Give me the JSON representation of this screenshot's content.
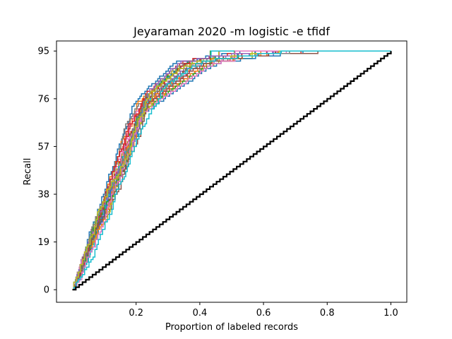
{
  "chart_data": {
    "type": "line",
    "title": "Jeyaraman 2020 -m logistic -e tfidf",
    "xlabel": "Proportion of labeled records",
    "ylabel": "Recall",
    "xlim": [
      -0.05,
      1.05
    ],
    "ylim": [
      -5,
      99
    ],
    "x_ticks": [
      0.2,
      0.4,
      0.6,
      0.8,
      1.0
    ],
    "x_tick_labels": [
      "0.2",
      "0.4",
      "0.6",
      "0.8",
      "1.0"
    ],
    "y_ticks": [
      0,
      19,
      38,
      57,
      76,
      95
    ],
    "y_tick_labels": [
      "0",
      "19",
      "38",
      "57",
      "76",
      "95"
    ],
    "grid": false,
    "legend": "none",
    "series_colors": [
      "#1f77b4",
      "#ff7f0e",
      "#2ca02c",
      "#d62728",
      "#9467bd",
      "#8c564b",
      "#e377c2",
      "#7f7f7f",
      "#bcbd22",
      "#17becf"
    ],
    "simulation_runs": {
      "count": 30,
      "shape": "step",
      "total_relevant": 95,
      "typical_path": [
        {
          "x": 0.0,
          "y": 0
        },
        {
          "x": 0.05,
          "y": 28
        },
        {
          "x": 0.08,
          "y": 46
        },
        {
          "x": 0.1,
          "y": 56
        },
        {
          "x": 0.13,
          "y": 63
        },
        {
          "x": 0.18,
          "y": 70
        },
        {
          "x": 0.25,
          "y": 78
        },
        {
          "x": 0.3,
          "y": 83
        },
        {
          "x": 0.35,
          "y": 88
        },
        {
          "x": 0.4,
          "y": 91
        },
        {
          "x": 0.5,
          "y": 93
        },
        {
          "x": 0.6,
          "y": 94
        },
        {
          "x": 0.75,
          "y": 95
        },
        {
          "x": 1.0,
          "y": 95
        }
      ]
    },
    "random_baseline": {
      "color": "#000000",
      "shape": "step",
      "x": [
        0.0,
        1.0
      ],
      "y": [
        0,
        95
      ]
    }
  }
}
